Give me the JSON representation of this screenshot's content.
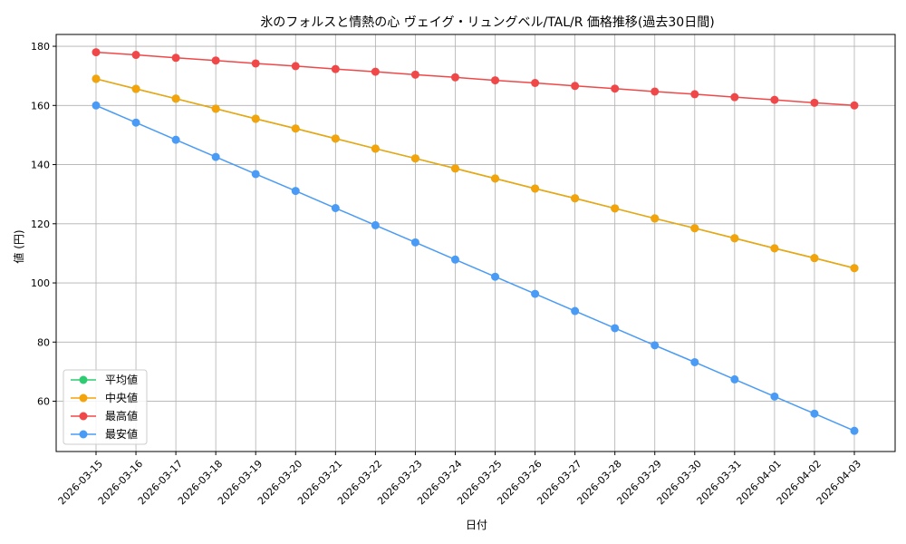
{
  "chart_data": {
    "type": "line",
    "title": "氷のフォルスと情熱の心 ヴェイグ・リュングベル/TAL/R 価格推移(過去30日間)",
    "xlabel": "日付",
    "ylabel": "値 (円)",
    "ylim": [
      43,
      184
    ],
    "yticks": [
      60,
      80,
      100,
      120,
      140,
      160,
      180
    ],
    "grid": true,
    "legend_position": "lower-left",
    "categories": [
      "2026-03-15",
      "2026-03-16",
      "2026-03-17",
      "2026-03-18",
      "2026-03-19",
      "2026-03-20",
      "2026-03-21",
      "2026-03-22",
      "2026-03-23",
      "2026-03-24",
      "2026-03-25",
      "2026-03-26",
      "2026-03-27",
      "2026-03-28",
      "2026-03-29",
      "2026-03-30",
      "2026-03-31",
      "2026-04-01",
      "2026-04-02",
      "2026-04-03"
    ],
    "series": [
      {
        "name": "平均値",
        "color": "#2ecc71",
        "values": [
          169,
          165.6,
          162.3,
          158.9,
          155.5,
          152.2,
          148.8,
          145.4,
          142.1,
          138.7,
          135.3,
          131.9,
          128.6,
          125.2,
          121.8,
          118.5,
          115.1,
          111.7,
          108.4,
          105
        ]
      },
      {
        "name": "中央値",
        "color": "#f5a30a",
        "values": [
          169,
          165.6,
          162.3,
          158.9,
          155.5,
          152.2,
          148.8,
          145.4,
          142.1,
          138.7,
          135.3,
          131.9,
          128.6,
          125.2,
          121.8,
          118.5,
          115.1,
          111.7,
          108.4,
          105
        ]
      },
      {
        "name": "最高値",
        "color": "#f04848",
        "values": [
          178,
          177.1,
          176.1,
          175.2,
          174.2,
          173.3,
          172.3,
          171.4,
          170.4,
          169.5,
          168.5,
          167.6,
          166.6,
          165.7,
          164.7,
          163.8,
          162.8,
          161.9,
          160.9,
          160
        ]
      },
      {
        "name": "最安値",
        "color": "#4a9bf5",
        "values": [
          160,
          154.2,
          148.4,
          142.6,
          136.8,
          131.1,
          125.3,
          119.5,
          113.7,
          107.9,
          102.1,
          96.3,
          90.5,
          84.7,
          78.9,
          73.2,
          67.4,
          61.6,
          55.8,
          50
        ]
      }
    ]
  }
}
